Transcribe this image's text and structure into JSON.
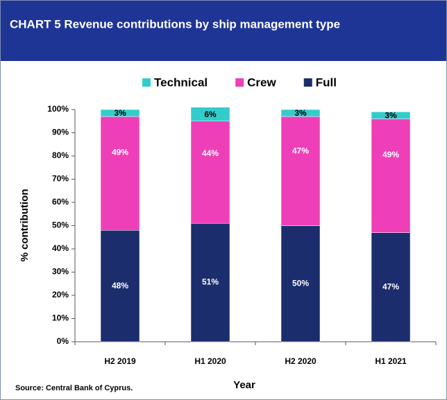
{
  "chart_data": {
    "type": "stacked_bar",
    "title": "CHART 5  Revenue contributions by ship management type",
    "source": "Source: Central Bank of Cyprus.",
    "xlabel": "Year",
    "ylabel": "% contribution",
    "categories": [
      "H2 2019",
      "H1 2020",
      "H2 2020",
      "H1 2021"
    ],
    "series": [
      {
        "name": "Technical",
        "color": "#33cccc",
        "values": [
          3,
          6,
          3,
          3
        ],
        "value_labels": [
          "3%",
          "6%",
          "3%",
          "3%"
        ]
      },
      {
        "name": "Crew",
        "color": "#ee3fb8",
        "values": [
          49,
          44,
          47,
          49
        ],
        "value_labels": [
          "49%",
          "44%",
          "47%",
          "49%"
        ]
      },
      {
        "name": "Full",
        "color": "#1c2d6e",
        "values": [
          48,
          51,
          50,
          47
        ],
        "value_labels": [
          "48%",
          "51%",
          "50%",
          "47%"
        ]
      }
    ],
    "ylim": [
      0,
      100
    ],
    "yticks": [
      {
        "value": 0,
        "label": "0%"
      },
      {
        "value": 10,
        "label": "10%"
      },
      {
        "value": 20,
        "label": "20%"
      },
      {
        "value": 30,
        "label": "30%"
      },
      {
        "value": 40,
        "label": "40%"
      },
      {
        "value": 50,
        "label": "50%"
      },
      {
        "value": 60,
        "label": "60%"
      },
      {
        "value": 70,
        "label": "70%"
      },
      {
        "value": 80,
        "label": "80%"
      },
      {
        "value": 90,
        "label": "90%"
      },
      {
        "value": 100,
        "label": "100%"
      }
    ],
    "legend": "top"
  }
}
